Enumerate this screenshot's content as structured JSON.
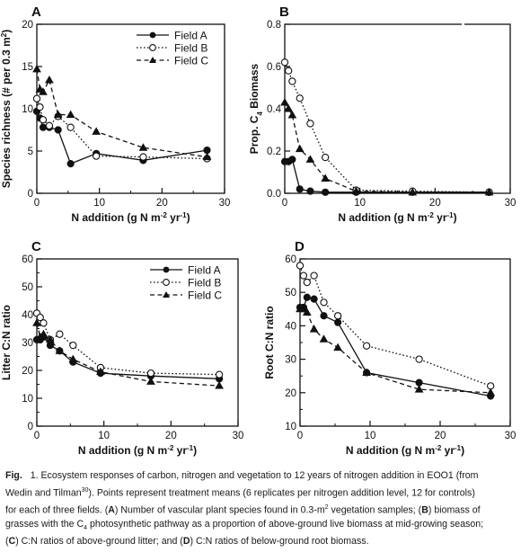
{
  "chart_data": [
    {
      "panel": "A",
      "type": "line",
      "ylabel": "Species richness (# per 0.3 m",
      "ylabel_sup": "2",
      "ylabel_end": ")",
      "xlabel_parts": [
        "N addition (g N m",
        "-2",
        " yr",
        "-1",
        ")"
      ],
      "xlim": [
        0,
        30
      ],
      "ylim": [
        0,
        20
      ],
      "xticks": [
        "0",
        "10",
        "20",
        "30"
      ],
      "yticks": [
        "0",
        "5",
        "10",
        "15",
        "20"
      ],
      "legend": "top-right",
      "series": [
        {
          "name": "Field A",
          "marker": "filled-circle",
          "dash": "solid",
          "x": [
            0,
            0.5,
            1,
            2,
            3.4,
            5.4,
            9.5,
            17,
            27.2
          ],
          "y": [
            9.7,
            8.9,
            7.8,
            7.8,
            7.5,
            3.5,
            4.7,
            3.9,
            5.1
          ]
        },
        {
          "name": "Field B",
          "marker": "open-circle",
          "dash": "dotted",
          "x": [
            0,
            0.5,
            1,
            2,
            3.4,
            5.4,
            9.5,
            17,
            27.2
          ],
          "y": [
            11.2,
            10.2,
            8.7,
            8.0,
            9.1,
            7.8,
            4.4,
            4.3,
            4.1
          ]
        },
        {
          "name": "Field C",
          "marker": "filled-triangle",
          "dash": "dashed",
          "x": [
            0,
            0.5,
            1,
            2,
            3.4,
            5.4,
            9.5,
            17,
            27.2
          ],
          "y": [
            14.7,
            12.3,
            12.0,
            13.4,
            9.3,
            9.3,
            7.3,
            5.4,
            4.3
          ]
        }
      ]
    },
    {
      "panel": "B",
      "type": "line",
      "ylabel_parts": [
        "Prop. C",
        "4",
        " Biomass"
      ],
      "xlabel_parts": [
        "N addition (g N m",
        "-2",
        " yr",
        "-1",
        ")"
      ],
      "xlim": [
        0,
        30
      ],
      "ylim": [
        0,
        0.8
      ],
      "xticks": [
        "0",
        "10",
        "20",
        "30"
      ],
      "yticks": [
        "0.0",
        "0.2",
        "0.4",
        "0.6",
        "0.8"
      ],
      "series": [
        {
          "name": "Field A",
          "marker": "filled-circle",
          "dash": "solid",
          "x": [
            0,
            0.5,
            1,
            2,
            3.4,
            5.4,
            9.5,
            17,
            27.2
          ],
          "y": [
            0.15,
            0.15,
            0.16,
            0.02,
            0.01,
            0.005,
            0.005,
            0.005,
            0.005
          ]
        },
        {
          "name": "Field B",
          "marker": "open-circle",
          "dash": "dotted",
          "x": [
            0,
            0.5,
            1,
            2,
            3.4,
            5.4,
            9.5,
            17,
            27.2
          ],
          "y": [
            0.62,
            0.58,
            0.53,
            0.45,
            0.33,
            0.17,
            0.015,
            0.01,
            0.005
          ]
        },
        {
          "name": "Field C",
          "marker": "filled-triangle",
          "dash": "dashed",
          "x": [
            0,
            0.5,
            1,
            2,
            3.4,
            5.4,
            9.5,
            17,
            27.2
          ],
          "y": [
            0.43,
            0.4,
            0.37,
            0.21,
            0.16,
            0.07,
            0.01,
            0.005,
            0.005
          ]
        }
      ]
    },
    {
      "panel": "C",
      "type": "line",
      "ylabel": "Litter C:N ratio",
      "xlabel": "N addition (g N m-2 yr-1)",
      "xlim": [
        0,
        30
      ],
      "ylim": [
        0,
        60
      ],
      "xticks": [
        "0",
        "10",
        "20",
        "30"
      ],
      "yticks": [
        "0",
        "10",
        "20",
        "30",
        "40",
        "50",
        "60"
      ],
      "legend": "top-right",
      "series": [
        {
          "name": "Field A",
          "marker": "filled-circle",
          "dash": "solid",
          "x": [
            0,
            0.5,
            1,
            2,
            3.4,
            5.4,
            9.5,
            17,
            27.2
          ],
          "y": [
            31,
            31,
            32,
            29,
            27,
            23,
            19,
            18,
            17
          ]
        },
        {
          "name": "Field B",
          "marker": "open-circle",
          "dash": "dotted",
          "x": [
            0,
            0.5,
            1,
            2,
            3.4,
            5.4,
            9.5,
            17,
            27.2
          ],
          "y": [
            40.5,
            39,
            37,
            31,
            33,
            29,
            21,
            19,
            18.5
          ]
        },
        {
          "name": "Field C",
          "marker": "filled-triangle",
          "dash": "dashed",
          "x": [
            0,
            0.5,
            1,
            2,
            3.4,
            5.4,
            9.5,
            17,
            27.2
          ],
          "y": [
            37,
            32,
            33,
            31,
            27,
            24,
            19.5,
            16,
            14.5
          ]
        }
      ]
    },
    {
      "panel": "D",
      "type": "line",
      "ylabel": "Root C:N ratio",
      "xlabel": "N addition (g N m-2 yr-1)",
      "xlim": [
        0,
        30
      ],
      "ylim": [
        10,
        60
      ],
      "xticks": [
        "0",
        "10",
        "20",
        "30"
      ],
      "yticks": [
        "10",
        "20",
        "30",
        "40",
        "50",
        "60"
      ],
      "series": [
        {
          "name": "Field A",
          "marker": "filled-circle",
          "dash": "solid",
          "x": [
            0,
            0.5,
            1,
            2,
            3.4,
            5.4,
            9.5,
            17,
            27.2
          ],
          "y": [
            45.5,
            45.5,
            48.5,
            48,
            43,
            41,
            26,
            23,
            19
          ]
        },
        {
          "name": "Field B",
          "marker": "open-circle",
          "dash": "dotted",
          "x": [
            0,
            0.5,
            1,
            2,
            3.4,
            5.4,
            9.5,
            17,
            27.2
          ],
          "y": [
            58,
            55,
            53,
            55,
            47,
            43,
            34,
            30,
            22
          ]
        },
        {
          "name": "Field C",
          "marker": "filled-triangle",
          "dash": "dashed",
          "x": [
            0,
            0.5,
            1,
            2,
            3.4,
            5.4,
            9.5,
            17,
            27.2
          ],
          "y": [
            45,
            45,
            44,
            39,
            36,
            33.5,
            26,
            21,
            20
          ]
        }
      ]
    }
  ],
  "legend_labels": [
    "Field A",
    "Field B",
    "Field C"
  ],
  "caption": {
    "fig_label": "Fig.",
    "fig_number": "1",
    "line1": ". Ecosystem responses of carbon, nitrogen and vegetation to 12 years of nitrogen addition in EOO1 (from",
    "line2a": "Wedin and Tilman",
    "line2_sup": "30",
    "line2b": "). Points represent treatment means (6 replicates per nitrogen addition level, 12 for controls)",
    "line3a": "for each of three fields. (",
    "line3_a": "A",
    "line3b": ") Number of vascular plant species found in 0.3-m",
    "line3_sup": "2",
    "line3c": " vegetation samples; (",
    "line3_b": "B",
    "line3d": ") biomass of",
    "line4a": "grasses with the C",
    "line4_sub": "4",
    "line4b": " photosynthetic pathway as a proportion of above-ground live biomass at mid-growing season;",
    "line5a": "(",
    "line5_c": "C",
    "line5b": ") C:N ratios of above-ground litter; and (",
    "line5_d": "D",
    "line5c": ") C:N ratios of below-ground root biomass."
  }
}
